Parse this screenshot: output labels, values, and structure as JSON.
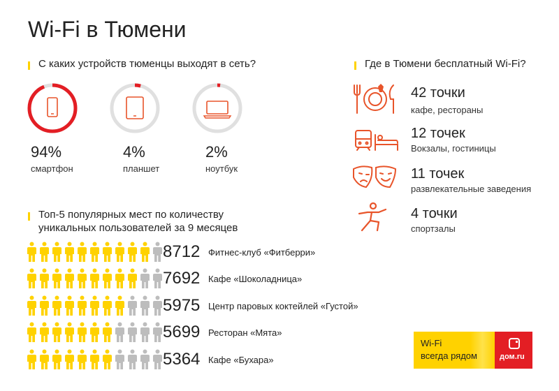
{
  "title": "Wi-Fi в Тюмени",
  "colors": {
    "accent_red": "#e31e24",
    "accent_yellow": "#ffd200",
    "gray": "#bdbdbd",
    "icon_orange": "#e8542a"
  },
  "devices": {
    "heading": "С каких устройств тюменцы выходят в сеть?",
    "items": [
      {
        "percent": "94%",
        "label": "смартфон",
        "share": 0.94,
        "icon": "smartphone-icon"
      },
      {
        "percent": "4%",
        "label": "планшет",
        "share": 0.04,
        "icon": "tablet-icon"
      },
      {
        "percent": "2%",
        "label": "ноутбук",
        "share": 0.02,
        "icon": "laptop-icon"
      }
    ]
  },
  "free_wifi": {
    "heading": "Где в Тюмени бесплатный Wi-Fi?",
    "items": [
      {
        "count": "42 точки",
        "label": "кафе, рестораны",
        "icon": "cafe-icon"
      },
      {
        "count": "12 точек",
        "label": "Вокзалы, гостиницы",
        "icon": "train-hotel-icon"
      },
      {
        "count": "11 точек",
        "label": "развлекательные заведения",
        "icon": "theater-masks-icon"
      },
      {
        "count": "4 точки",
        "label": "спортзалы",
        "icon": "sport-icon"
      }
    ]
  },
  "top5": {
    "heading_line1": "Топ-5 популярных мест по количеству",
    "heading_line2": "уникальных пользователей за 9 месяцев",
    "items": [
      {
        "value": "8712",
        "name": "Фитнес-клуб «Фитберри»",
        "filled": 10
      },
      {
        "value": "7692",
        "name": "Кафе «Шоколадница»",
        "filled": 9
      },
      {
        "value": "5975",
        "name": "Центр паровых коктейлей «Густой»",
        "filled": 8
      },
      {
        "value": "5699",
        "name": "Ресторан «Мята»",
        "filled": 7
      },
      {
        "value": "5364",
        "name": "Кафе «Бухара»",
        "filled": 7
      }
    ],
    "total_figures": 11
  },
  "banner": {
    "line1": "Wi-Fi",
    "line2": "всегда рядом",
    "logo_text": "дом.ru"
  }
}
